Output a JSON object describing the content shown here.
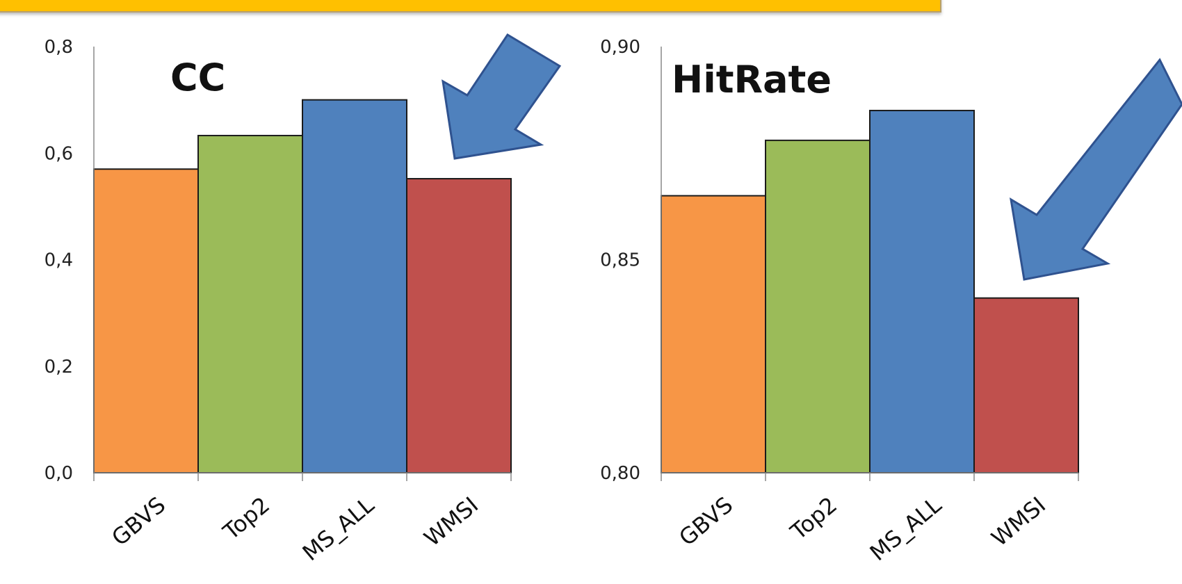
{
  "chart_data": [
    {
      "type": "bar",
      "title": "CC",
      "categories": [
        "GBVS",
        "Top2",
        "MS_ALL",
        "WMSI"
      ],
      "values": [
        0.57,
        0.633,
        0.7,
        0.552
      ],
      "colors": [
        "#f79646",
        "#9bbb59",
        "#4f81bd",
        "#c0504d"
      ],
      "ylim": [
        0,
        0.8
      ],
      "yticks": [
        "0,0",
        "0,2",
        "0,4",
        "0,6",
        "0,8"
      ],
      "ytick_values": [
        0,
        0.2,
        0.4,
        0.6,
        0.8
      ],
      "grid": false,
      "annotation": "arrow pointing at WMSI"
    },
    {
      "type": "bar",
      "title": "HitRate",
      "categories": [
        "GBVS",
        "Top2",
        "MS_ALL",
        "WMSI"
      ],
      "values": [
        0.865,
        0.878,
        0.885,
        0.841
      ],
      "colors": [
        "#f79646",
        "#9bbb59",
        "#4f81bd",
        "#c0504d"
      ],
      "ylim": [
        0.8,
        0.9
      ],
      "yticks": [
        "0,80",
        "0,85",
        "0,90"
      ],
      "ytick_values": [
        0.8,
        0.85,
        0.9
      ],
      "grid": false,
      "annotation": "arrow pointing at WMSI"
    }
  ]
}
